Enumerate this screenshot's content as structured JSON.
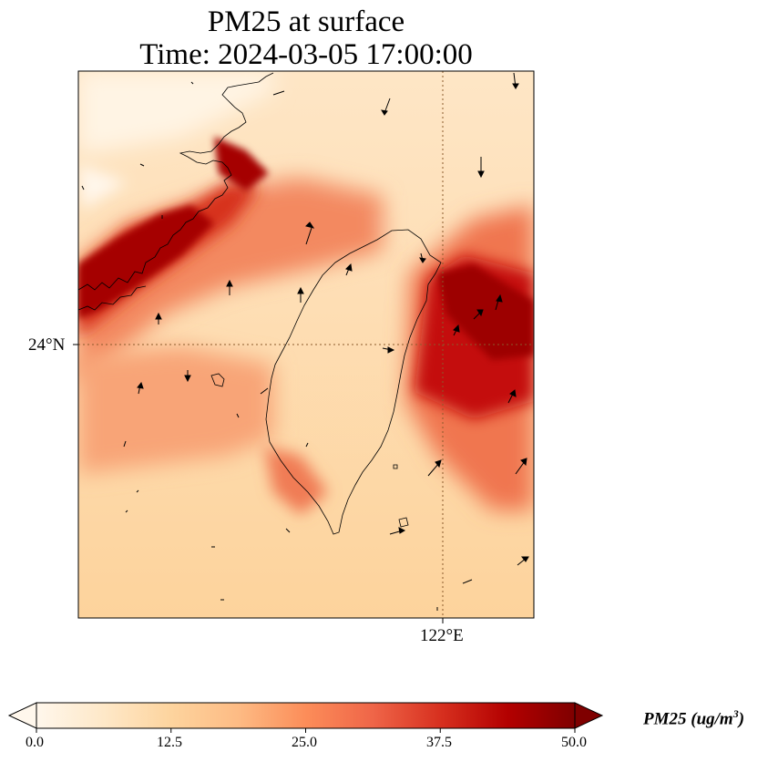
{
  "title": {
    "line1": "PM25 at surface",
    "line2": "Time: 2024-03-05 17:00:00"
  },
  "map": {
    "lat_label": "24°N",
    "lon_label": "122°E",
    "gridline_color": "#8b5a2b",
    "coastline_color": "#000000"
  },
  "colorbar": {
    "label_main": "PM25 (ug/m",
    "label_sup": "3",
    "label_close": ")",
    "ticks": [
      "0.0",
      "12.5",
      "25.0",
      "37.5",
      "50.0"
    ],
    "range": [
      0,
      50
    ],
    "colormap": "OrRd",
    "extend": "both",
    "colors": [
      "#fff7ec",
      "#fee8c8",
      "#fdd49e",
      "#fdbb84",
      "#fc8d59",
      "#ef6548",
      "#d7301f",
      "#b30000",
      "#7f0000"
    ]
  }
}
